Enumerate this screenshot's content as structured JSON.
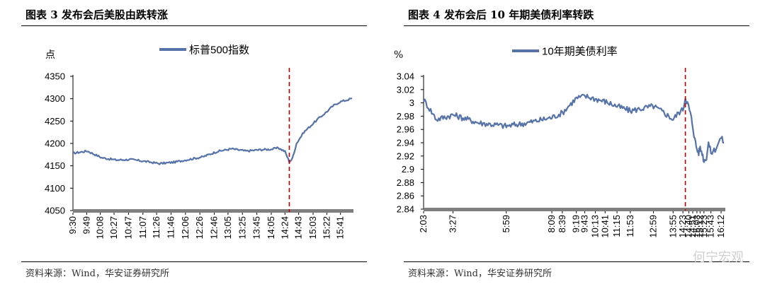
{
  "figures": [
    {
      "title": "图表 3 发布会后美股由跌转涨",
      "source": "资料来源：Wind，华安证券研究所"
    },
    {
      "title": "图表 4  发布会后 10 年期美债利率转跌",
      "source": "资料来源：Wind，华安证券研究所"
    }
  ],
  "watermark": "何宁宏观",
  "colors": {
    "series": "#5572A9",
    "event_line": "#C00000",
    "axis": "#7F7F7F"
  },
  "chart_data": [
    {
      "type": "line",
      "ylabel": "点",
      "ylim": [
        4050,
        4350
      ],
      "yticks": [
        4050,
        4100,
        4150,
        4200,
        4250,
        4300,
        4350
      ],
      "x_tick_labels": [
        "9:30",
        "9:49",
        "10:08",
        "10:27",
        "10:47",
        "11:07",
        "11:26",
        "11:46",
        "12:06",
        "12:26",
        "12:46",
        "13:05",
        "13:25",
        "13:45",
        "14:05",
        "14:24",
        "14:43",
        "15:03",
        "15:22",
        "15:41"
      ],
      "event_marker_label": "14:30",
      "legend_position": "top-center",
      "grid": false,
      "series": [
        {
          "name": "标普500指数",
          "x": [
            "9:30",
            "9:50",
            "10:10",
            "10:30",
            "10:50",
            "11:10",
            "11:30",
            "11:50",
            "12:10",
            "12:30",
            "12:50",
            "13:10",
            "13:30",
            "13:50",
            "14:05",
            "14:15",
            "14:24",
            "14:30",
            "14:34",
            "14:40",
            "14:50",
            "15:00",
            "15:10",
            "15:20",
            "15:30",
            "15:40",
            "15:50",
            "15:57"
          ],
          "values": [
            4178,
            4183,
            4168,
            4163,
            4164,
            4160,
            4155,
            4158,
            4164,
            4170,
            4182,
            4188,
            4183,
            4186,
            4187,
            4190,
            4182,
            4159,
            4165,
            4200,
            4225,
            4240,
            4255,
            4268,
            4283,
            4293,
            4297,
            4301
          ]
        }
      ]
    },
    {
      "type": "line",
      "ylabel": "%",
      "ylim": [
        2.84,
        3.04
      ],
      "yticks": [
        2.84,
        2.86,
        2.88,
        2.9,
        2.92,
        2.94,
        2.96,
        2.98,
        3,
        3.02,
        3.04
      ],
      "x_tick_labels": [
        "2:03",
        "3:27",
        "5:59",
        "8:09",
        "8:39",
        "9:19",
        "9:43",
        "10:13",
        "10:41",
        "11:15",
        "11:53",
        "12:59",
        "13:55",
        "14:23",
        "14:40",
        "14:51",
        "15:03",
        "15:12",
        "15:23",
        "15:43",
        "16:12"
      ],
      "event_marker_label": "14:30",
      "legend_position": "top-center",
      "grid": false,
      "series": [
        {
          "name": "10年期美债利率",
          "x": [
            "2:03",
            "2:40",
            "3:27",
            "4:40",
            "5:59",
            "7:00",
            "8:09",
            "8:39",
            "9:00",
            "9:19",
            "9:43",
            "10:00",
            "10:13",
            "10:41",
            "11:15",
            "11:53",
            "12:30",
            "12:59",
            "13:30",
            "13:55",
            "14:10",
            "14:23",
            "14:30",
            "14:36",
            "14:40",
            "14:46",
            "14:51",
            "14:57",
            "15:03",
            "15:08",
            "15:12",
            "15:18",
            "15:23",
            "15:30",
            "15:36",
            "15:43",
            "15:55",
            "16:12",
            "16:20"
          ],
          "values": [
            3.005,
            2.975,
            2.982,
            2.97,
            2.965,
            2.97,
            2.978,
            2.985,
            2.997,
            3.007,
            3.01,
            3.008,
            3.006,
            3.002,
            2.995,
            2.988,
            2.992,
            2.995,
            2.985,
            2.975,
            2.985,
            2.99,
            3.008,
            3.0,
            2.993,
            2.98,
            2.965,
            2.945,
            2.93,
            2.925,
            2.932,
            2.925,
            2.912,
            2.918,
            2.94,
            2.925,
            2.93,
            2.948,
            2.94
          ]
        }
      ]
    }
  ]
}
